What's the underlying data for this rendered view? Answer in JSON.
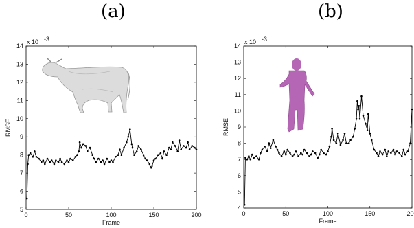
{
  "panel_labels": [
    "(a)",
    "(b)"
  ],
  "chart_data": [
    {
      "type": "line",
      "panel": "(a)",
      "xlabel": "Frame",
      "ylabel": "RMSE",
      "exponent_label": "x 10",
      "exponent_power": "-3",
      "xlim": [
        0,
        200
      ],
      "ylim": [
        5,
        14
      ],
      "xticks": [
        0,
        50,
        100,
        150,
        200
      ],
      "yticks": [
        5,
        6,
        7,
        8,
        9,
        10,
        11,
        12,
        13,
        14
      ],
      "grid": false,
      "inset_image": "cow-mesh",
      "series": [
        {
          "color": "#000000",
          "marker": "dot",
          "x": [
            1,
            2,
            3,
            5,
            8,
            10,
            12,
            15,
            18,
            20,
            22,
            25,
            28,
            30,
            33,
            35,
            38,
            40,
            42,
            45,
            48,
            50,
            52,
            55,
            58,
            60,
            62,
            63,
            65,
            67,
            70,
            72,
            75,
            78,
            80,
            82,
            85,
            88,
            90,
            92,
            95,
            98,
            100,
            102,
            105,
            108,
            110,
            112,
            115,
            118,
            120,
            122,
            124,
            125,
            127,
            130,
            132,
            135,
            138,
            140,
            142,
            145,
            147,
            148,
            150,
            152,
            155,
            158,
            160,
            162,
            165,
            168,
            170,
            172,
            175,
            178,
            180,
            182,
            185,
            188,
            190,
            192,
            195,
            198,
            200
          ],
          "y": [
            5.6,
            7.5,
            8.0,
            8.1,
            7.9,
            8.2,
            7.9,
            7.8,
            7.6,
            7.7,
            7.5,
            7.8,
            7.6,
            7.7,
            7.5,
            7.7,
            7.6,
            7.8,
            7.6,
            7.5,
            7.7,
            7.6,
            7.8,
            7.7,
            7.9,
            8.0,
            8.2,
            8.7,
            8.4,
            8.6,
            8.5,
            8.2,
            8.4,
            8.0,
            7.8,
            7.6,
            7.8,
            7.6,
            7.7,
            7.5,
            7.8,
            7.6,
            7.7,
            7.6,
            7.9,
            8.0,
            8.3,
            8.0,
            8.4,
            8.7,
            9.0,
            9.4,
            8.6,
            8.4,
            8.0,
            8.2,
            8.5,
            8.3,
            8.0,
            7.8,
            7.7,
            7.5,
            7.3,
            7.4,
            7.7,
            7.8,
            8.0,
            8.1,
            7.8,
            8.2,
            8.0,
            8.4,
            8.3,
            8.7,
            8.5,
            8.2,
            8.8,
            8.3,
            8.5,
            8.4,
            8.7,
            8.3,
            8.5,
            8.4,
            8.3
          ]
        }
      ]
    },
    {
      "type": "line",
      "panel": "(b)",
      "xlabel": "Frame",
      "ylabel": "RMSE",
      "exponent_label": "x 10",
      "exponent_power": "-3",
      "xlim": [
        0,
        200
      ],
      "ylim": [
        4,
        14
      ],
      "xticks": [
        0,
        50,
        100,
        150,
        200
      ],
      "yticks": [
        4,
        5,
        6,
        7,
        8,
        9,
        10,
        11,
        12,
        13,
        14
      ],
      "grid": false,
      "inset_image": "human-figure-mesh",
      "series": [
        {
          "color": "#000000",
          "marker": "dot",
          "x": [
            1,
            2,
            4,
            6,
            8,
            10,
            12,
            15,
            18,
            20,
            22,
            25,
            28,
            30,
            32,
            35,
            38,
            40,
            42,
            45,
            48,
            50,
            52,
            55,
            58,
            60,
            62,
            65,
            68,
            70,
            72,
            75,
            78,
            80,
            82,
            85,
            88,
            90,
            92,
            95,
            98,
            100,
            102,
            104,
            105,
            107,
            110,
            112,
            115,
            118,
            120,
            122,
            125,
            127,
            130,
            132,
            134,
            135,
            136,
            137,
            138,
            140,
            142,
            145,
            147,
            148,
            150,
            152,
            155,
            158,
            160,
            162,
            165,
            168,
            170,
            172,
            175,
            178,
            180,
            182,
            185,
            188,
            190,
            192,
            195,
            198,
            200
          ],
          "y": [
            4.2,
            7.1,
            7.0,
            7.2,
            7.0,
            7.3,
            7.1,
            7.2,
            7.0,
            7.4,
            7.6,
            7.8,
            7.5,
            8.0,
            7.7,
            8.2,
            7.8,
            7.6,
            7.4,
            7.2,
            7.5,
            7.3,
            7.6,
            7.4,
            7.2,
            7.3,
            7.5,
            7.2,
            7.4,
            7.3,
            7.6,
            7.4,
            7.2,
            7.3,
            7.5,
            7.4,
            7.1,
            7.3,
            7.6,
            7.4,
            7.3,
            7.5,
            7.8,
            8.4,
            8.9,
            8.2,
            8.0,
            8.6,
            7.9,
            8.2,
            8.6,
            8.0,
            8.0,
            8.2,
            8.4,
            8.9,
            9.5,
            10.6,
            10.1,
            10.3,
            9.5,
            10.9,
            9.7,
            9.2,
            8.8,
            9.8,
            8.6,
            8.2,
            7.6,
            7.4,
            7.2,
            7.5,
            7.3,
            7.6,
            7.2,
            7.5,
            7.4,
            7.6,
            7.3,
            7.5,
            7.4,
            7.2,
            7.6,
            7.3,
            7.5,
            8.0,
            10.1
          ]
        }
      ]
    }
  ]
}
